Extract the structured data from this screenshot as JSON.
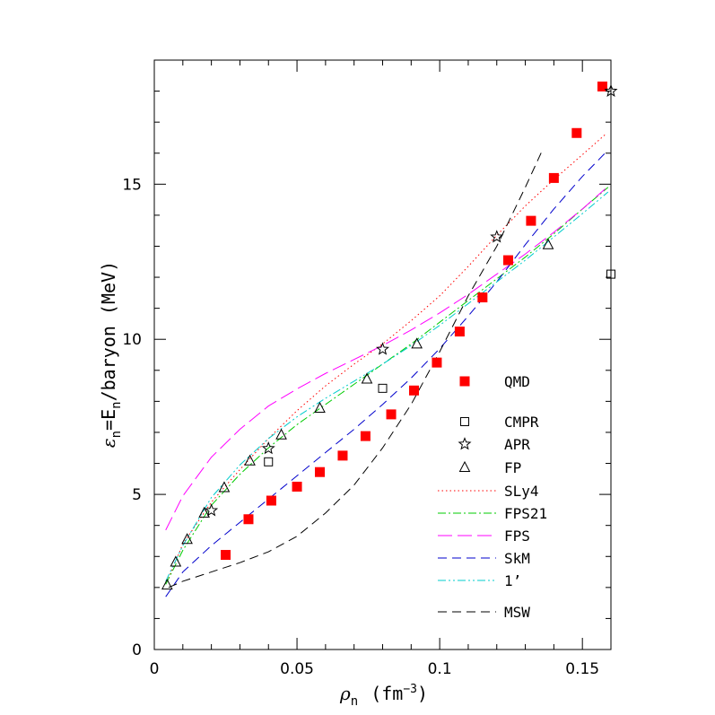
{
  "chart_data": {
    "type": "scatter",
    "xlim": [
      0,
      0.16
    ],
    "ylim": [
      0,
      19
    ],
    "xticks": [
      0,
      0.05,
      0.1,
      0.15
    ],
    "xtick_labels": [
      "0",
      "0.05",
      "0.1",
      "0.15"
    ],
    "yticks": [
      0,
      5,
      10,
      15
    ],
    "ytick_labels": [
      "0",
      "5",
      "10",
      "15"
    ],
    "xlabel": {
      "main": "ρ",
      "sub": "n",
      "unit": "(fm",
      "sup": "−3",
      "close": ")"
    },
    "ylabel": {
      "eps": "ε",
      "sub1": "n",
      "eq": "=E",
      "sub2": "n",
      "rest": "/baryon (MeV)"
    },
    "grid": false,
    "legend_position": "right",
    "series": [
      {
        "name": "QMD",
        "marker": "filled-square",
        "color": "#ff0000",
        "x": [
          0.025,
          0.033,
          0.041,
          0.05,
          0.058,
          0.066,
          0.074,
          0.083,
          0.091,
          0.099,
          0.107,
          0.115,
          0.124,
          0.132,
          0.14,
          0.148,
          0.157
        ],
        "y": [
          3.05,
          4.2,
          4.8,
          5.25,
          5.72,
          6.25,
          6.88,
          7.58,
          8.35,
          9.25,
          10.25,
          11.35,
          12.55,
          13.82,
          15.2,
          16.65,
          18.15
        ]
      },
      {
        "name": "CMPR",
        "marker": "open-square",
        "color": "#000000",
        "x": [
          0.04,
          0.08,
          0.16
        ],
        "y": [
          6.05,
          8.42,
          12.1
        ]
      },
      {
        "name": "APR",
        "marker": "open-star",
        "color": "#000000",
        "x": [
          0.02,
          0.04,
          0.08,
          0.12,
          0.16
        ],
        "y": [
          4.48,
          6.48,
          9.68,
          13.3,
          18.0
        ]
      },
      {
        "name": "FP",
        "marker": "open-triangle",
        "color": "#000000",
        "x": [
          0.0045,
          0.0075,
          0.0115,
          0.0175,
          0.0245,
          0.0335,
          0.0445,
          0.058,
          0.0745,
          0.092,
          0.138
        ],
        "y": [
          2.08,
          2.82,
          3.55,
          4.4,
          5.22,
          6.08,
          6.92,
          7.78,
          8.72,
          9.85,
          13.05
        ]
      },
      {
        "name": "SLy4",
        "line": "dotted",
        "color": "#ff0000",
        "x": [
          0.005,
          0.01,
          0.02,
          0.03,
          0.04,
          0.05,
          0.06,
          0.07,
          0.08,
          0.09,
          0.1,
          0.11,
          0.12,
          0.13,
          0.14,
          0.15,
          0.158
        ],
        "y": [
          2.3,
          3.4,
          4.75,
          5.8,
          6.8,
          7.7,
          8.5,
          9.2,
          9.85,
          10.6,
          11.4,
          12.35,
          13.35,
          14.3,
          15.15,
          15.95,
          16.6
        ]
      },
      {
        "name": "FPS21",
        "line": "dash-dot",
        "color": "#00cc00",
        "x": [
          0.004,
          0.01,
          0.02,
          0.03,
          0.04,
          0.05,
          0.06,
          0.07,
          0.08,
          0.09,
          0.1,
          0.11,
          0.12,
          0.13,
          0.14,
          0.15,
          0.159
        ],
        "y": [
          2.1,
          3.2,
          4.65,
          5.65,
          6.5,
          7.25,
          7.9,
          8.55,
          9.2,
          9.85,
          10.55,
          11.25,
          11.95,
          12.65,
          13.4,
          14.2,
          14.9
        ]
      },
      {
        "name": "FPS",
        "line": "long-dash",
        "color": "#ff00ff",
        "x": [
          0.004,
          0.01,
          0.02,
          0.03,
          0.04,
          0.05,
          0.06,
          0.07,
          0.08,
          0.09,
          0.1,
          0.11,
          0.12,
          0.13,
          0.14,
          0.15,
          0.158
        ],
        "y": [
          3.85,
          4.95,
          6.2,
          7.1,
          7.85,
          8.4,
          8.9,
          9.35,
          9.8,
          10.3,
          10.85,
          11.45,
          12.1,
          12.75,
          13.45,
          14.2,
          14.85
        ]
      },
      {
        "name": "SkM",
        "line": "dash",
        "color": "#0000cc",
        "x": [
          0.004,
          0.01,
          0.02,
          0.03,
          0.04,
          0.05,
          0.06,
          0.07,
          0.08,
          0.09,
          0.1,
          0.11,
          0.12,
          0.13,
          0.14,
          0.15,
          0.159
        ],
        "y": [
          1.7,
          2.5,
          3.35,
          4.1,
          4.85,
          5.6,
          6.35,
          7.1,
          7.9,
          8.75,
          9.7,
          10.75,
          11.85,
          13.05,
          14.2,
          15.25,
          16.1
        ]
      },
      {
        "name": "1’",
        "line": "dash-dot-dot",
        "color": "#00cccc",
        "x": [
          0.004,
          0.01,
          0.02,
          0.03,
          0.04,
          0.05,
          0.06,
          0.07,
          0.08,
          0.09,
          0.1,
          0.11,
          0.12,
          0.13,
          0.14,
          0.15,
          0.159
        ],
        "y": [
          2.2,
          3.35,
          4.9,
          5.95,
          6.8,
          7.5,
          8.1,
          8.65,
          9.2,
          9.8,
          10.45,
          11.15,
          11.85,
          12.55,
          13.3,
          14.05,
          14.75
        ]
      },
      {
        "name": "MSW",
        "line": "dash",
        "color": "#000000",
        "x": [
          0.005,
          0.01,
          0.02,
          0.03,
          0.04,
          0.05,
          0.06,
          0.07,
          0.08,
          0.09,
          0.1,
          0.11,
          0.12,
          0.13,
          0.136
        ],
        "y": [
          2.0,
          2.2,
          2.5,
          2.8,
          3.15,
          3.65,
          4.4,
          5.3,
          6.5,
          7.9,
          9.6,
          11.4,
          13.0,
          14.9,
          16.1
        ]
      }
    ]
  }
}
